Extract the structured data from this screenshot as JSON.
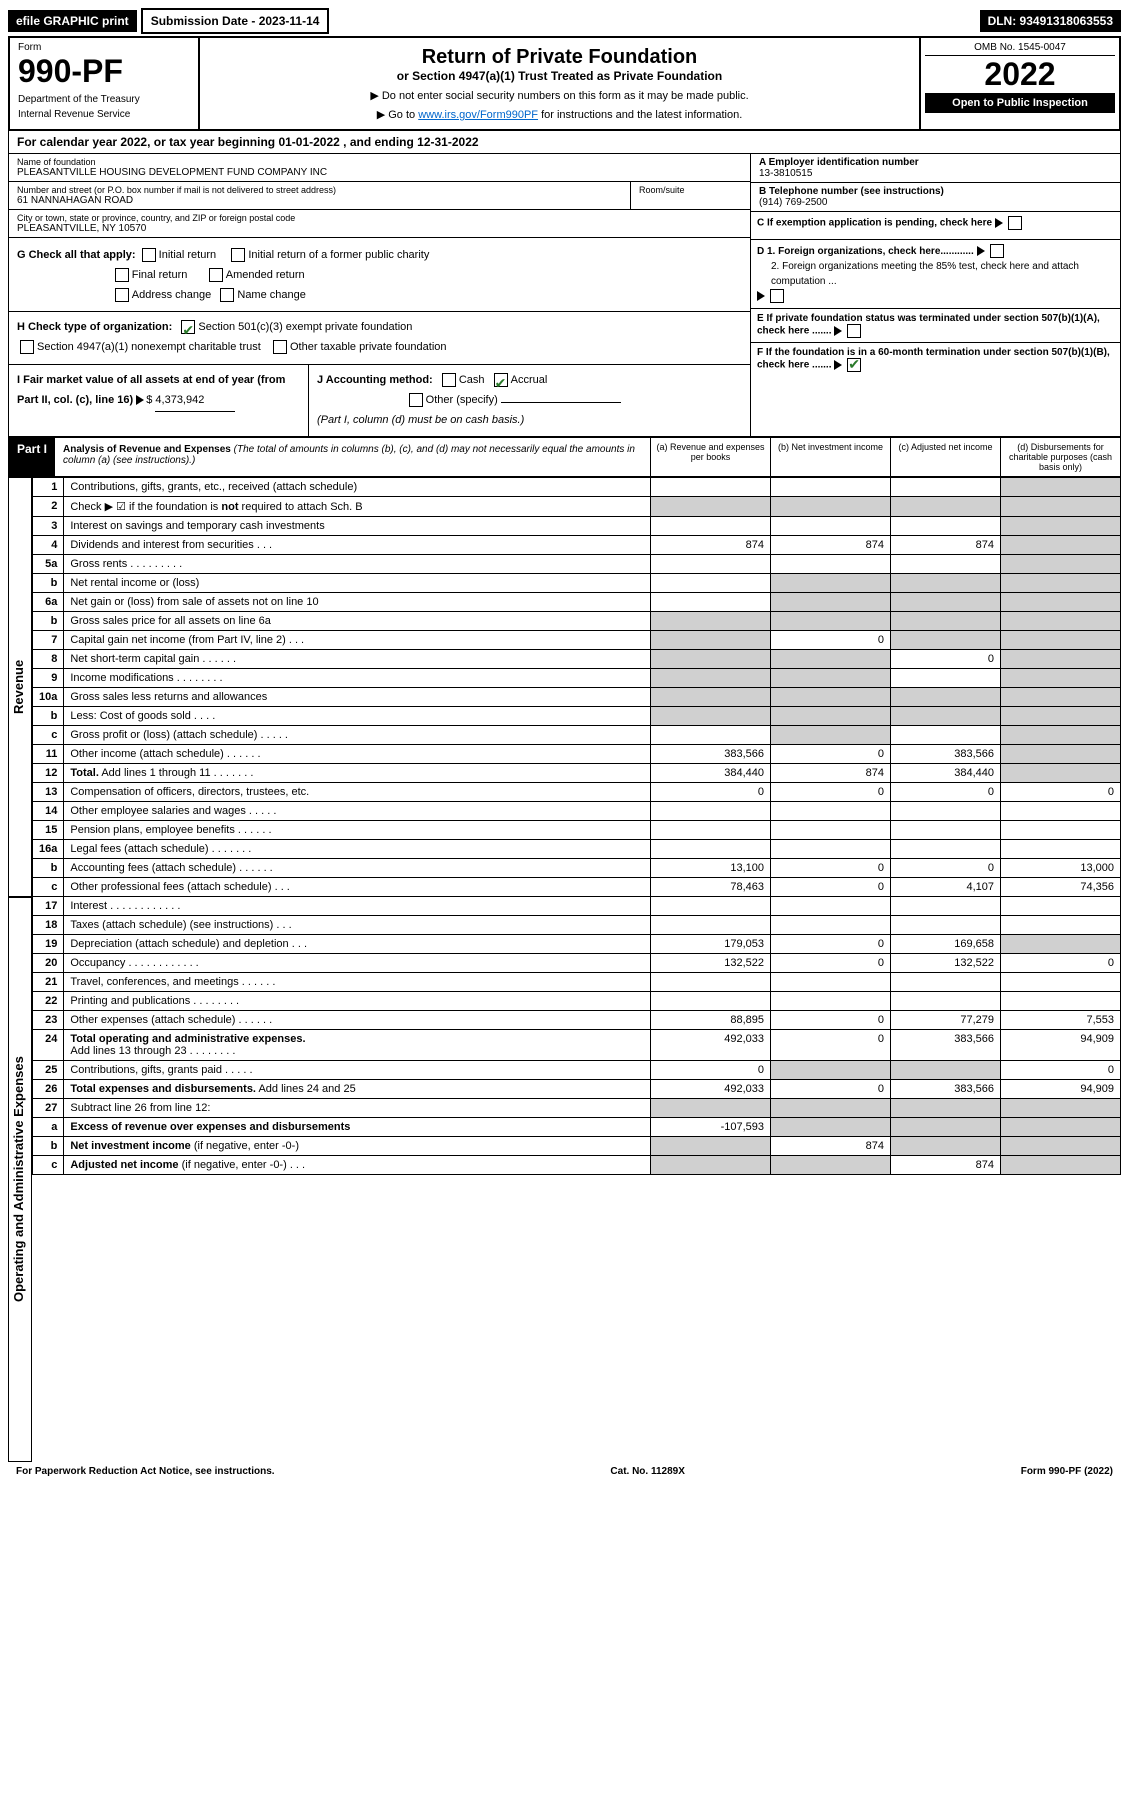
{
  "topbar": {
    "efile": "efile GRAPHIC print",
    "submission_label": "Submission Date - 2023-11-14",
    "dln": "DLN: 93491318063553"
  },
  "header": {
    "form_label": "Form",
    "form_number": "990-PF",
    "dept1": "Department of the Treasury",
    "dept2": "Internal Revenue Service",
    "title": "Return of Private Foundation",
    "subtitle": "or Section 4947(a)(1) Trust Treated as Private Foundation",
    "note1": "▶ Do not enter social security numbers on this form as it may be made public.",
    "note2_pre": "▶ Go to ",
    "note2_link": "www.irs.gov/Form990PF",
    "note2_post": " for instructions and the latest information.",
    "omb": "OMB No. 1545-0047",
    "year": "2022",
    "open": "Open to Public Inspection"
  },
  "calyear": "For calendar year 2022, or tax year beginning 01-01-2022                , and ending 12-31-2022",
  "foundation": {
    "name_label": "Name of foundation",
    "name": "PLEASANTVILLE HOUSING DEVELOPMENT FUND COMPANY INC",
    "addr_label": "Number and street (or P.O. box number if mail is not delivered to street address)",
    "addr": "61 NANNAHAGAN ROAD",
    "room_label": "Room/suite",
    "city_label": "City or town, state or province, country, and ZIP or foreign postal code",
    "city": "PLEASANTVILLE, NY  10570",
    "ein_label": "A Employer identification number",
    "ein": "13-3810515",
    "phone_label": "B Telephone number (see instructions)",
    "phone": "(914) 769-2500",
    "c_label": "C If exemption application is pending, check here",
    "d1": "D 1. Foreign organizations, check here............",
    "d2": "2. Foreign organizations meeting the 85% test, check here and attach computation ...",
    "e_label": "E  If private foundation status was terminated under section 507(b)(1)(A), check here .......",
    "f_label": "F  If the foundation is in a 60-month termination under section 507(b)(1)(B), check here .......",
    "g_label": "G Check all that apply:",
    "g_initial": "Initial return",
    "g_initial_former": "Initial return of a former public charity",
    "g_final": "Final return",
    "g_amended": "Amended return",
    "g_address": "Address change",
    "g_name": "Name change",
    "h_label": "H Check type of organization:",
    "h_501c3": "Section 501(c)(3) exempt private foundation",
    "h_4947": "Section 4947(a)(1) nonexempt charitable trust",
    "h_other": "Other taxable private foundation",
    "i_label": "I Fair market value of all assets at end of year (from Part II, col. (c), line 16)",
    "i_value": "4,373,942",
    "j_label": "J Accounting method:",
    "j_cash": "Cash",
    "j_accrual": "Accrual",
    "j_other": "Other (specify)",
    "j_note": "(Part I, column (d) must be on cash basis.)"
  },
  "part1": {
    "label": "Part I",
    "title": "Analysis of Revenue and Expenses",
    "title_note": "(The total of amounts in columns (b), (c), and (d) may not necessarily equal the amounts in column (a) (see instructions).)",
    "col_a": "(a) Revenue and expenses per books",
    "col_b": "(b) Net investment income",
    "col_c": "(c) Adjusted net income",
    "col_d": "(d) Disbursements for charitable purposes (cash basis only)",
    "side_revenue": "Revenue",
    "side_expenses": "Operating and Administrative Expenses",
    "rows": [
      {
        "n": "1",
        "d": "",
        "a": "",
        "b": "",
        "c": "",
        "dgrey": true
      },
      {
        "n": "2",
        "d": "",
        "a": "",
        "b": "",
        "c": "",
        "dgrey": true,
        "allgrey_bcde": true
      },
      {
        "n": "3",
        "d": "",
        "a": "",
        "b": "",
        "c": "",
        "dgrey": true
      },
      {
        "n": "4",
        "d": "",
        "a": "874",
        "b": "874",
        "c": "874",
        "dgrey": true
      },
      {
        "n": "5a",
        "d": "",
        "a": "",
        "b": "",
        "c": "",
        "dgrey": true
      },
      {
        "n": "b",
        "d": "",
        "a": "",
        "b": "",
        "c": "",
        "dgrey": true,
        "grey_bc": true
      },
      {
        "n": "6a",
        "d": "",
        "a": "",
        "b": "",
        "c": "",
        "dgrey": true,
        "grey_bc": true
      },
      {
        "n": "b",
        "d": "",
        "a": "",
        "b": "",
        "c": "",
        "dgrey": true,
        "allgrey_bcde": true
      },
      {
        "n": "7",
        "d": "",
        "a": "",
        "b": "0",
        "c": "",
        "dgrey": true,
        "grey_a": true,
        "grey_c": true
      },
      {
        "n": "8",
        "d": "",
        "a": "",
        "b": "",
        "c": "0",
        "dgrey": true,
        "grey_a": true,
        "grey_b": true
      },
      {
        "n": "9",
        "d": "",
        "a": "",
        "b": "",
        "c": "",
        "dgrey": true,
        "grey_a": true,
        "grey_b": true
      },
      {
        "n": "10a",
        "d": "",
        "a": "",
        "b": "",
        "c": "",
        "dgrey": true,
        "allgrey_bcde": true
      },
      {
        "n": "b",
        "d": "",
        "a": "",
        "b": "",
        "c": "",
        "dgrey": true,
        "allgrey_bcde": true
      },
      {
        "n": "c",
        "d": "",
        "a": "",
        "b": "",
        "c": "",
        "dgrey": true,
        "grey_b": true
      },
      {
        "n": "11",
        "d": "",
        "a": "383,566",
        "b": "0",
        "c": "383,566",
        "dgrey": true
      },
      {
        "n": "12",
        "d": "",
        "a": "384,440",
        "b": "874",
        "c": "384,440",
        "dgrey": true,
        "bold": true
      },
      {
        "n": "13",
        "d": "0",
        "a": "0",
        "b": "0",
        "c": "0"
      },
      {
        "n": "14",
        "d": "",
        "a": "",
        "b": "",
        "c": ""
      },
      {
        "n": "15",
        "d": "",
        "a": "",
        "b": "",
        "c": ""
      },
      {
        "n": "16a",
        "d": "",
        "a": "",
        "b": "",
        "c": ""
      },
      {
        "n": "b",
        "d": "13,000",
        "a": "13,100",
        "b": "0",
        "c": "0"
      },
      {
        "n": "c",
        "d": "74,356",
        "a": "78,463",
        "b": "0",
        "c": "4,107"
      },
      {
        "n": "17",
        "d": "",
        "a": "",
        "b": "",
        "c": ""
      },
      {
        "n": "18",
        "d": "",
        "a": "",
        "b": "",
        "c": ""
      },
      {
        "n": "19",
        "d": "",
        "a": "179,053",
        "b": "0",
        "c": "169,658",
        "dgrey": true
      },
      {
        "n": "20",
        "d": "0",
        "a": "132,522",
        "b": "0",
        "c": "132,522"
      },
      {
        "n": "21",
        "d": "",
        "a": "",
        "b": "",
        "c": ""
      },
      {
        "n": "22",
        "d": "",
        "a": "",
        "b": "",
        "c": ""
      },
      {
        "n": "23",
        "d": "7,553",
        "a": "88,895",
        "b": "0",
        "c": "77,279"
      },
      {
        "n": "24",
        "d": "94,909",
        "a": "492,033",
        "b": "0",
        "c": "383,566",
        "bold": true
      },
      {
        "n": "25",
        "d": "0",
        "a": "0",
        "b": "",
        "c": "",
        "grey_bc": true
      },
      {
        "n": "26",
        "d": "94,909",
        "a": "492,033",
        "b": "0",
        "c": "383,566",
        "bold": true
      },
      {
        "n": "27",
        "d": "",
        "a": "",
        "b": "",
        "c": "",
        "grey_all": true
      },
      {
        "n": "a",
        "d": "",
        "a": "-107,593",
        "b": "",
        "c": "",
        "bold": true,
        "grey_bcd": true
      },
      {
        "n": "b",
        "d": "",
        "a": "",
        "b": "874",
        "c": "",
        "bold": true,
        "grey_a": true,
        "grey_cd": true
      },
      {
        "n": "c",
        "d": "",
        "a": "",
        "b": "",
        "c": "874",
        "bold": true,
        "grey_ab": true,
        "dgrey": true
      }
    ]
  },
  "footer": {
    "left": "For Paperwork Reduction Act Notice, see instructions.",
    "center": "Cat. No. 11289X",
    "right": "Form 990-PF (2022)"
  }
}
